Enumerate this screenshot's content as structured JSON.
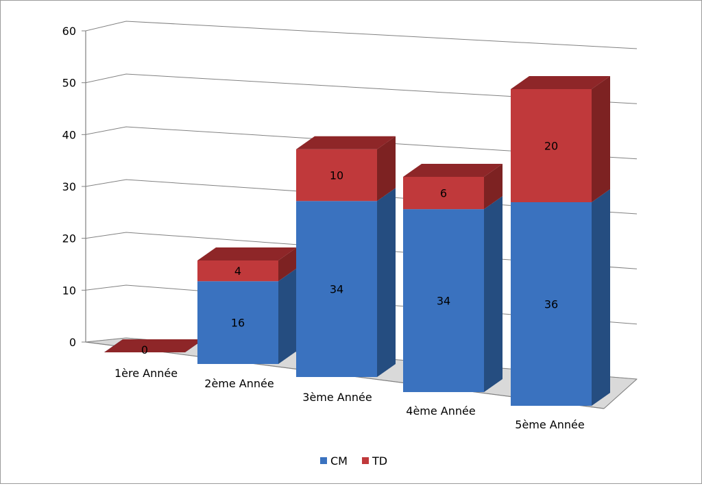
{
  "chart_data": {
    "type": "bar",
    "stacked": true,
    "three_d": true,
    "title": "",
    "xlabel": "",
    "ylabel": "",
    "categories": [
      "1ère Année",
      "2ème Année",
      "3ème Année",
      "4ème Année",
      "5ème Année"
    ],
    "series": [
      {
        "name": "CM",
        "values": [
          0,
          16,
          34,
          34,
          36
        ],
        "color": "#3a72bf",
        "side_color": "#254d80",
        "top_color": "#2f5f9f"
      },
      {
        "name": "TD",
        "values": [
          0,
          4,
          10,
          6,
          20
        ],
        "color": "#c0393b",
        "side_color": "#7d2222",
        "top_color": "#8e2628"
      }
    ],
    "data_labels": [
      [
        "",
        "16",
        "34",
        "34",
        "36"
      ],
      [
        "0",
        "4",
        "10",
        "6",
        "20"
      ]
    ],
    "y_ticks": [
      "0",
      "10",
      "20",
      "30",
      "40",
      "50",
      "60"
    ],
    "ylim": [
      0,
      60
    ],
    "grid": true,
    "legend_position": "bottom"
  }
}
